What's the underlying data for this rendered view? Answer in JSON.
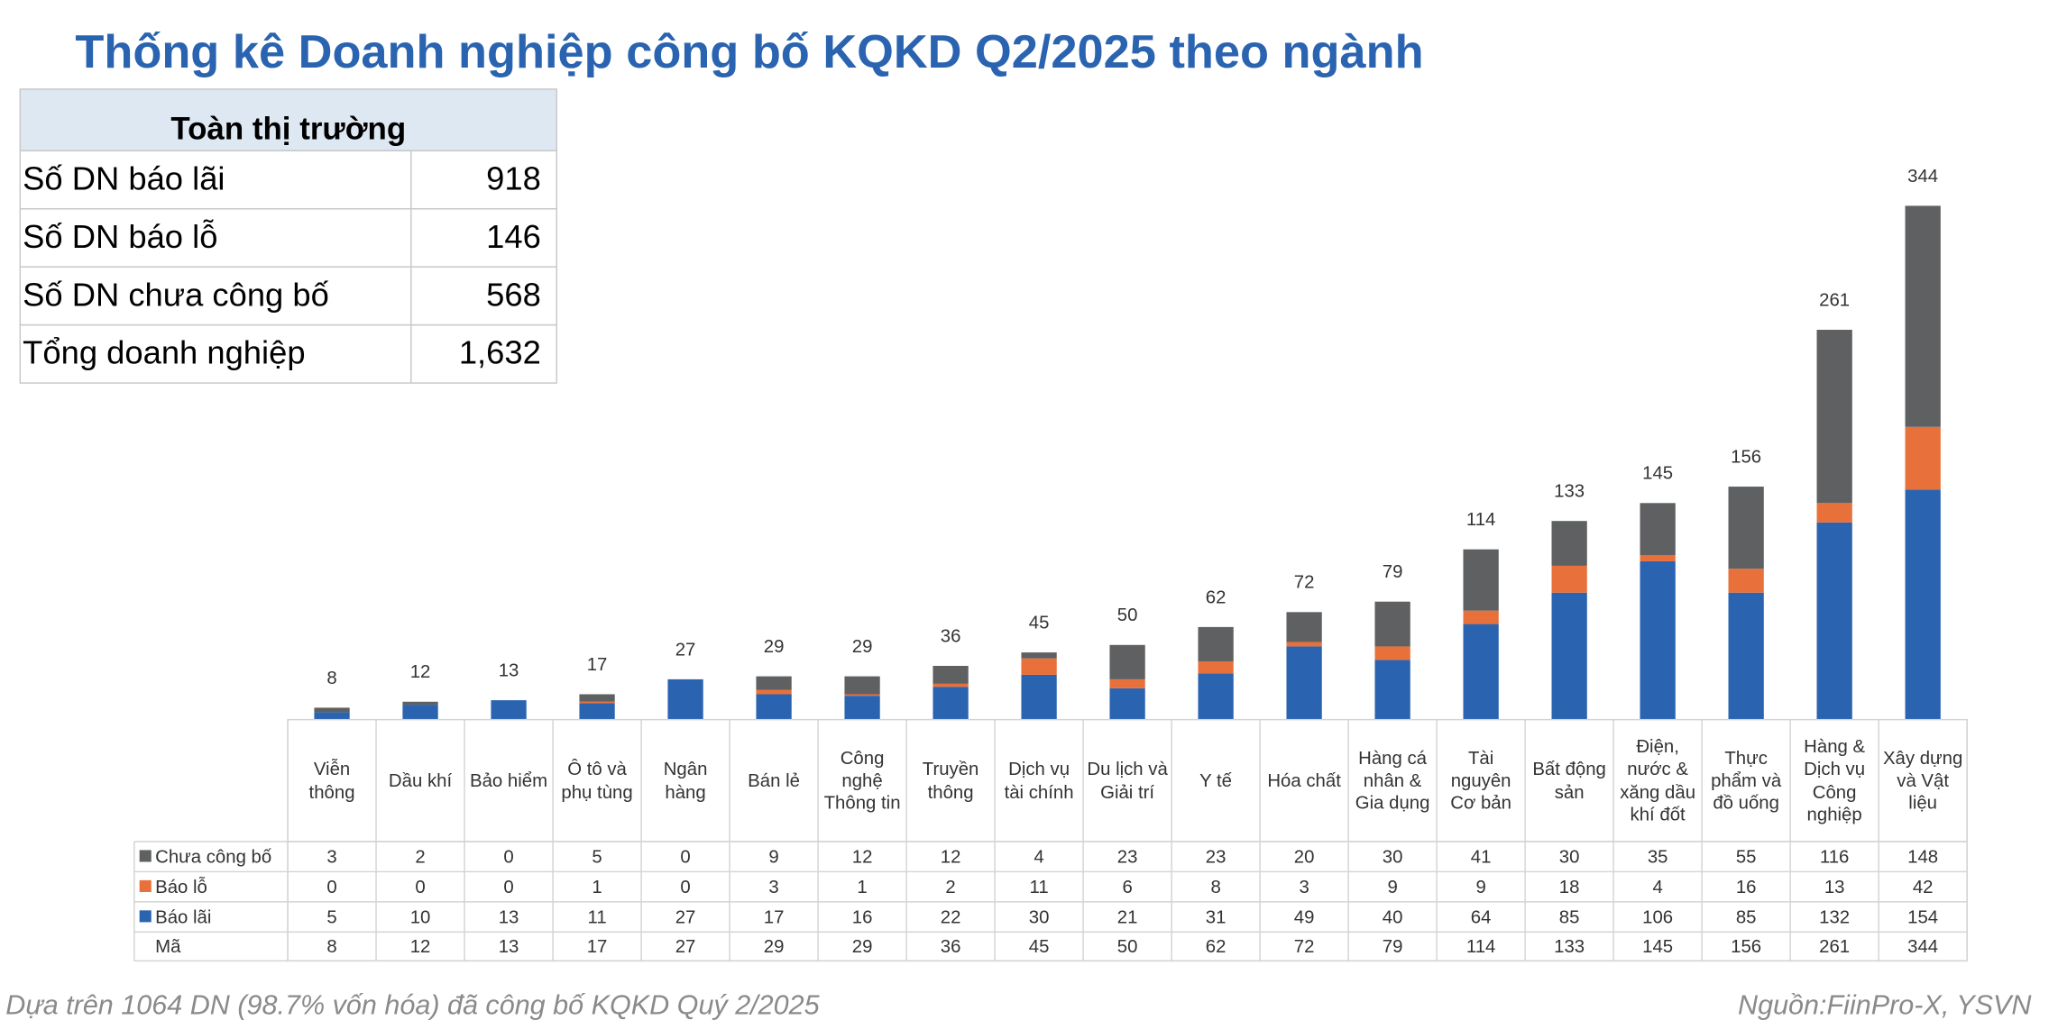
{
  "chart_data": {
    "type": "stacked_bar",
    "title": "Thống kê Doanh nghiệp công bố KQKD Q2/2025 theo ngành",
    "summary_table": {
      "header": "Toàn thị trường",
      "rows": [
        [
          "Số DN báo lãi",
          918
        ],
        [
          "Số DN báo lỗ",
          146
        ],
        [
          "Số DN chưa công bố",
          568
        ],
        [
          "Tổng doanh nghiệp",
          {
            "value": 1632,
            "label": "1,632"
          }
        ]
      ]
    },
    "categories": [
      "Viễn thông",
      "Dầu khí",
      "Bảo hiểm",
      "Ô tô và phụ tùng",
      "Ngân hàng",
      "Bán lẻ",
      "Công nghệ Thông tin",
      "Truyền thông",
      "Dịch vụ tài chính",
      "Du lịch và Giải trí",
      "Y tế",
      "Hóa chất",
      "Hàng cá nhân & Gia dụng",
      "Tài nguyên Cơ bản",
      "Bất động sản",
      "Điện, nước & xăng dầu khí đốt",
      "Thực phẩm và đồ uống",
      "Hàng & Dịch vụ Công nghiệp",
      "Xây dựng và Vật liệu"
    ],
    "series": [
      {
        "name": "Chưa công bố",
        "color": "#5f6062",
        "values": [
          3,
          2,
          0,
          5,
          0,
          9,
          12,
          12,
          4,
          23,
          23,
          20,
          30,
          41,
          30,
          35,
          55,
          116,
          148
        ]
      },
      {
        "name": "Báo lỗ",
        "color": "#e8703a",
        "values": [
          0,
          0,
          0,
          1,
          0,
          3,
          1,
          2,
          11,
          6,
          8,
          3,
          9,
          9,
          18,
          4,
          16,
          13,
          42
        ]
      },
      {
        "name": "Báo lãi",
        "color": "#2a64b0",
        "values": [
          5,
          10,
          13,
          11,
          27,
          17,
          16,
          22,
          30,
          21,
          31,
          49,
          40,
          64,
          85,
          106,
          85,
          132,
          154
        ]
      }
    ],
    "total_name": "Mã",
    "totals": [
      8,
      12,
      13,
      17,
      27,
      29,
      29,
      36,
      45,
      50,
      62,
      72,
      79,
      114,
      133,
      145,
      156,
      261,
      344
    ],
    "footnote": "Dựa trên 1064 DN (98.7% vốn hóa) đã công bố KQKD Quý 2/2025",
    "source": "Nguồn:FiinPro-X, YSVN"
  }
}
